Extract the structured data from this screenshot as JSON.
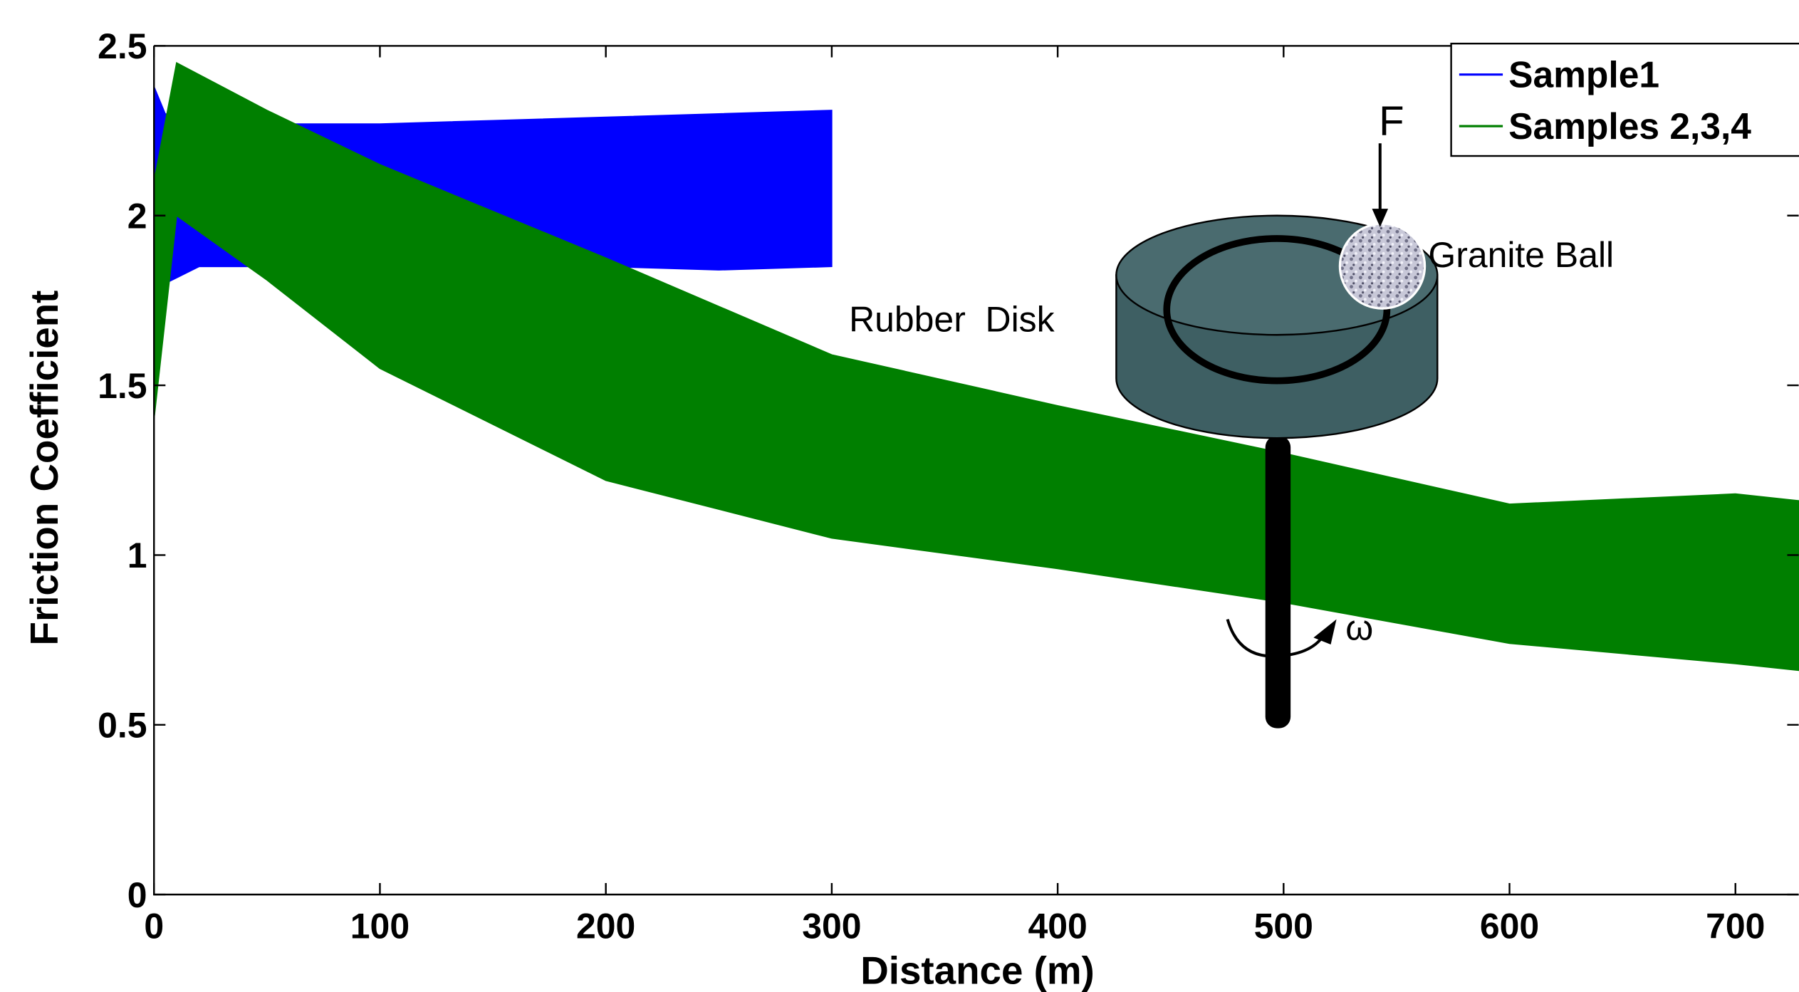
{
  "chart_data": {
    "type": "band",
    "x_label": "Distance (m)",
    "y_label": "Friction Coefficient",
    "xlim": [
      0,
      728
    ],
    "ylim": [
      0,
      2.5
    ],
    "xticks": [
      0,
      100,
      200,
      300,
      400,
      500,
      600,
      700
    ],
    "yticks": [
      0,
      0.5,
      1,
      1.5,
      2,
      2.5
    ],
    "series": [
      {
        "name": "Sample1",
        "color": "#0000ff",
        "x": [
          0,
          5,
          20,
          60,
          100,
          150,
          200,
          250,
          300
        ],
        "upper": [
          2.38,
          2.3,
          2.28,
          2.27,
          2.27,
          2.28,
          2.29,
          2.3,
          2.31
        ],
        "lower": [
          1.4,
          1.8,
          1.85,
          1.85,
          1.86,
          1.86,
          1.85,
          1.84,
          1.85
        ]
      },
      {
        "name": "Samples 2,3,4",
        "color": "#007f00",
        "x": [
          0,
          10,
          50,
          100,
          200,
          300,
          400,
          500,
          600,
          700,
          728
        ],
        "upper": [
          2.1,
          2.45,
          2.31,
          2.15,
          1.875,
          1.59,
          1.44,
          1.3,
          1.15,
          1.18,
          1.16
        ],
        "lower": [
          1.4,
          2.0,
          1.81,
          1.55,
          1.22,
          1.05,
          0.96,
          0.86,
          0.74,
          0.68,
          0.66
        ]
      }
    ],
    "annotations": [
      "F",
      "Granite Ball",
      "Rubber  Disk",
      "ω"
    ]
  }
}
